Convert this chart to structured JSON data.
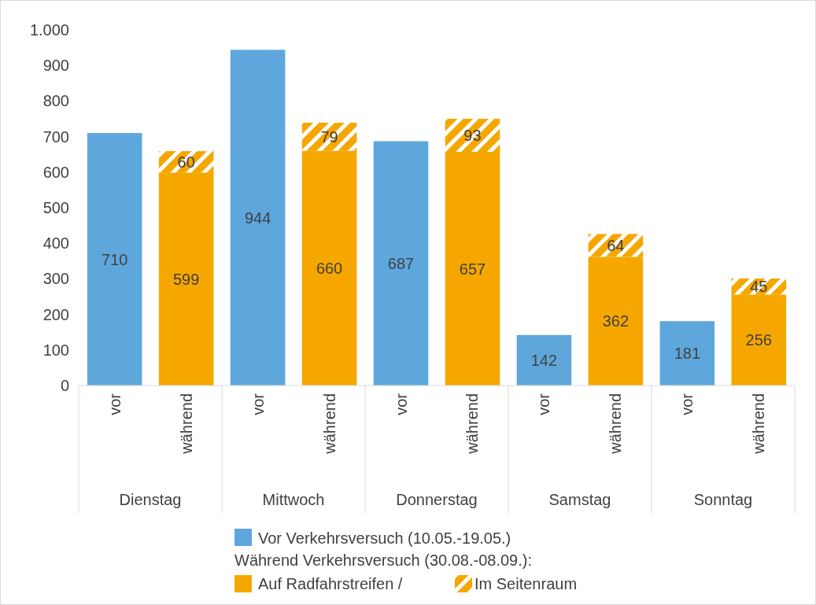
{
  "chart_data": {
    "type": "bar",
    "stacked": true,
    "data_labels": true,
    "legend": "bottom",
    "grid": false,
    "categories": [
      "vor",
      "während",
      "vor",
      "während",
      "vor",
      "während",
      "vor",
      "während",
      "vor",
      "während"
    ],
    "annotations": [
      "Dienstag",
      "Mittwoch",
      "Donnerstag",
      "Samstag",
      "Sonntag"
    ],
    "legend_title": "Während Verkehrsversuch (30.08.-08.09.):",
    "ylim": [
      0,
      1000
    ],
    "yticks": [
      0,
      100,
      200,
      300,
      400,
      500,
      600,
      700,
      800,
      900,
      {
        "value": 1000,
        "label": "1.000"
      }
    ],
    "series": [
      {
        "name": "Vor Verkehrsversuch (10.05.-19.05.)",
        "color": "#5ea7dc",
        "values": [
          710,
          null,
          944,
          null,
          687,
          null,
          142,
          null,
          181,
          null
        ]
      },
      {
        "name": "Auf Radfahrstreifen /",
        "color": "#f5a700",
        "values": [
          null,
          599,
          null,
          660,
          null,
          657,
          null,
          362,
          null,
          256
        ]
      },
      {
        "name": "Im Seitenraum",
        "color": "#f5a700",
        "values": [
          null,
          60,
          null,
          79,
          null,
          93,
          null,
          64,
          null,
          45
        ]
      }
    ]
  }
}
